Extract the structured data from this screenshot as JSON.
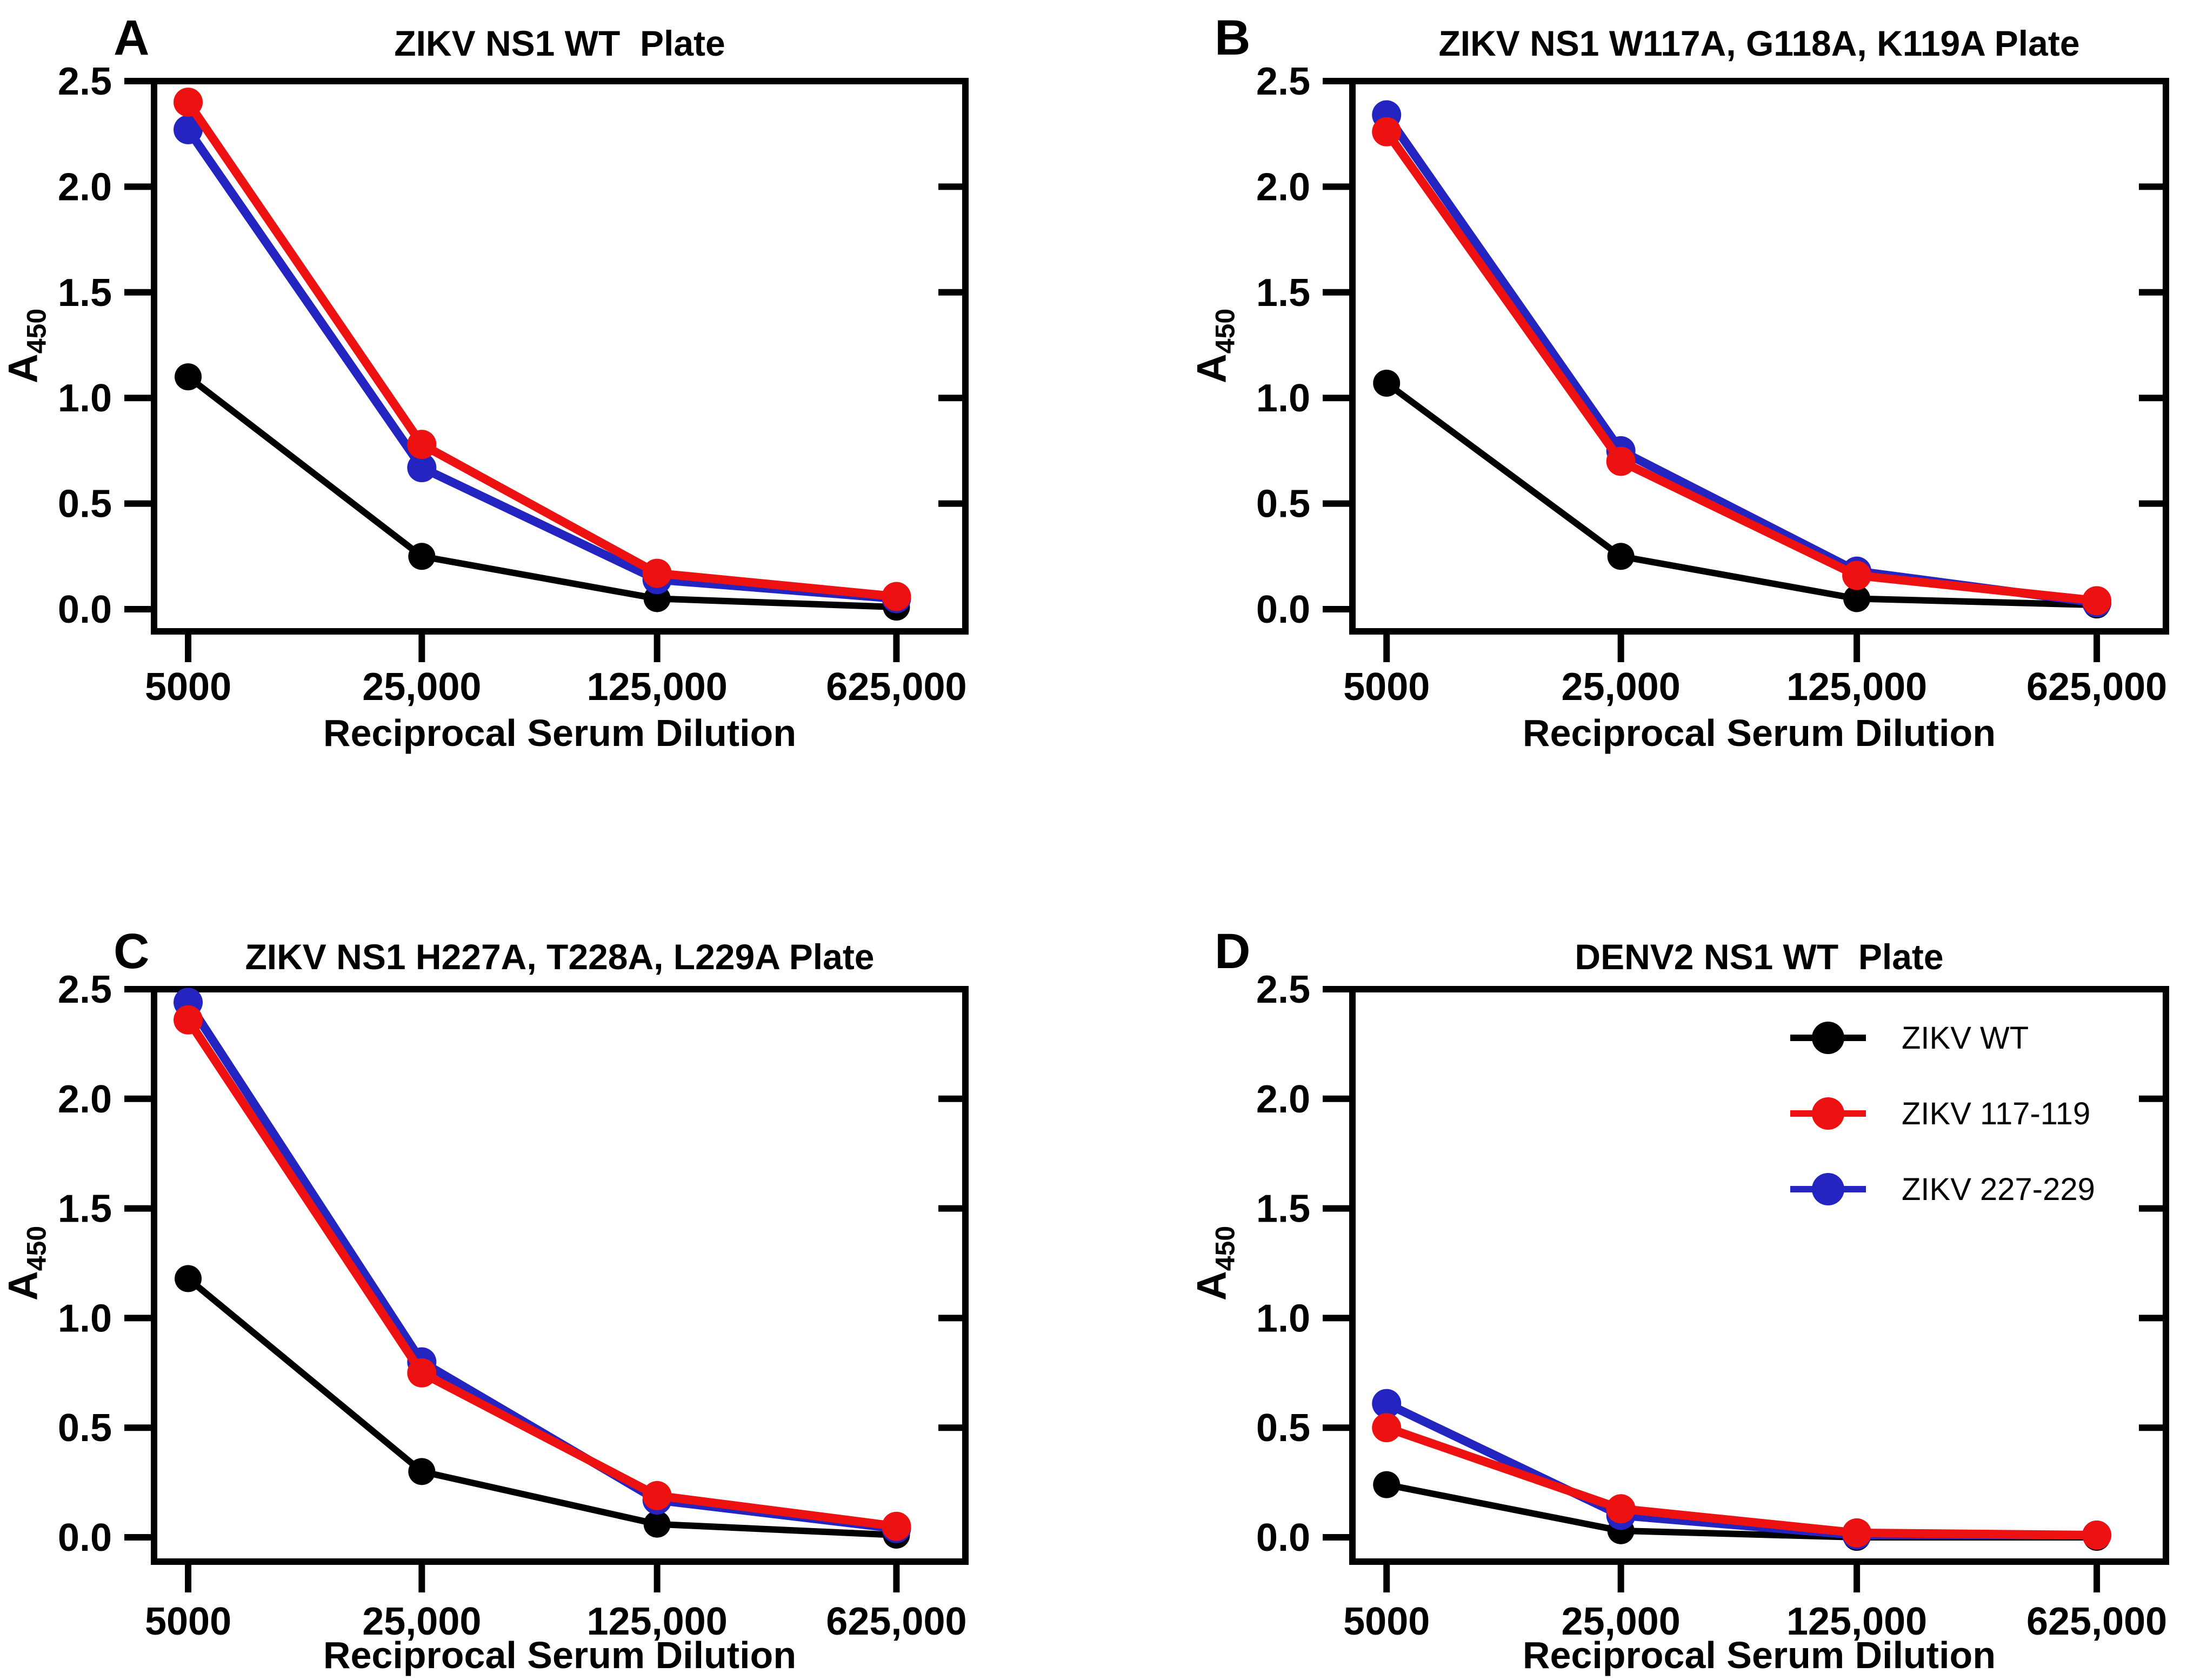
{
  "page": {
    "background": "#ffffff"
  },
  "axes": {
    "ylabel_main": "A",
    "ylabel_sub": "450",
    "xlabel": "Reciprocal Serum Dilution",
    "yticks": [
      "0.0",
      "0.5",
      "1.0",
      "1.5",
      "2.0",
      "2.5"
    ],
    "ytick_values": [
      0,
      0.5,
      1.0,
      1.5,
      2.0,
      2.5
    ],
    "ylim": [
      0,
      2.5
    ]
  },
  "legend": {
    "position": "inside panel D, top right",
    "entries": [
      {
        "label": "ZIKV WT",
        "color": "#000000"
      },
      {
        "label": "ZIKV 117-119",
        "color": "#ee1111"
      },
      {
        "label": "ZIKV 227-229",
        "color": "#2424c0"
      }
    ]
  },
  "chart_data": [
    {
      "type": "line",
      "letter": "A",
      "title": "ZIKV NS1 WT  Plate",
      "xlabel": "Reciprocal Serum Dilution",
      "ylabel": "A450",
      "ylim": [
        0,
        2.5
      ],
      "categories": [
        "5000",
        "25,000",
        "125,000",
        "625,000"
      ],
      "series": [
        {
          "name": "ZIKV WT",
          "color": "#000000",
          "values": [
            1.1,
            0.25,
            0.05,
            0.01
          ]
        },
        {
          "name": "ZIKV 117-119",
          "color": "#ee1111",
          "values": [
            2.4,
            0.78,
            0.17,
            0.06
          ]
        },
        {
          "name": "ZIKV 227-229",
          "color": "#2424c0",
          "values": [
            2.27,
            0.67,
            0.14,
            0.05
          ]
        }
      ]
    },
    {
      "type": "line",
      "letter": "B",
      "title": "ZIKV NS1 W117A, G118A, K119A Plate",
      "xlabel": "Reciprocal Serum Dilution",
      "ylabel": "A450",
      "ylim": [
        0,
        2.5
      ],
      "categories": [
        "5000",
        "25,000",
        "125,000",
        "625,000"
      ],
      "series": [
        {
          "name": "ZIKV WT",
          "color": "#000000",
          "values": [
            1.07,
            0.25,
            0.05,
            0.02
          ]
        },
        {
          "name": "ZIKV 117-119",
          "color": "#ee1111",
          "values": [
            2.26,
            0.7,
            0.16,
            0.04
          ]
        },
        {
          "name": "ZIKV 227-229",
          "color": "#2424c0",
          "values": [
            2.34,
            0.75,
            0.18,
            0.03
          ]
        }
      ]
    },
    {
      "type": "line",
      "letter": "C",
      "title": "ZIKV NS1 H227A, T228A, L229A Plate",
      "xlabel": "Reciprocal Serum Dilution",
      "ylabel": "A450",
      "ylim": [
        0,
        2.5
      ],
      "categories": [
        "5000",
        "25,000",
        "125,000",
        "625,000"
      ],
      "series": [
        {
          "name": "ZIKV WT",
          "color": "#000000",
          "values": [
            1.18,
            0.3,
            0.06,
            0.01
          ]
        },
        {
          "name": "ZIKV 117-119",
          "color": "#ee1111",
          "values": [
            2.36,
            0.75,
            0.19,
            0.05
          ]
        },
        {
          "name": "ZIKV 227-229",
          "color": "#2424c0",
          "values": [
            2.44,
            0.8,
            0.17,
            0.04
          ]
        }
      ]
    },
    {
      "type": "line",
      "letter": "D",
      "title": "DENV2 NS1 WT  Plate",
      "xlabel": "Reciprocal Serum Dilution",
      "ylabel": "A450",
      "ylim": [
        0,
        2.5
      ],
      "categories": [
        "5000",
        "25,000",
        "125,000",
        "625,000"
      ],
      "series": [
        {
          "name": "ZIKV WT",
          "color": "#000000",
          "values": [
            0.24,
            0.03,
            0.0,
            0.0
          ]
        },
        {
          "name": "ZIKV 117-119",
          "color": "#ee1111",
          "values": [
            0.5,
            0.13,
            0.02,
            0.01
          ]
        },
        {
          "name": "ZIKV 227-229",
          "color": "#2424c0",
          "values": [
            0.61,
            0.1,
            0.01,
            0.01
          ]
        }
      ]
    }
  ]
}
